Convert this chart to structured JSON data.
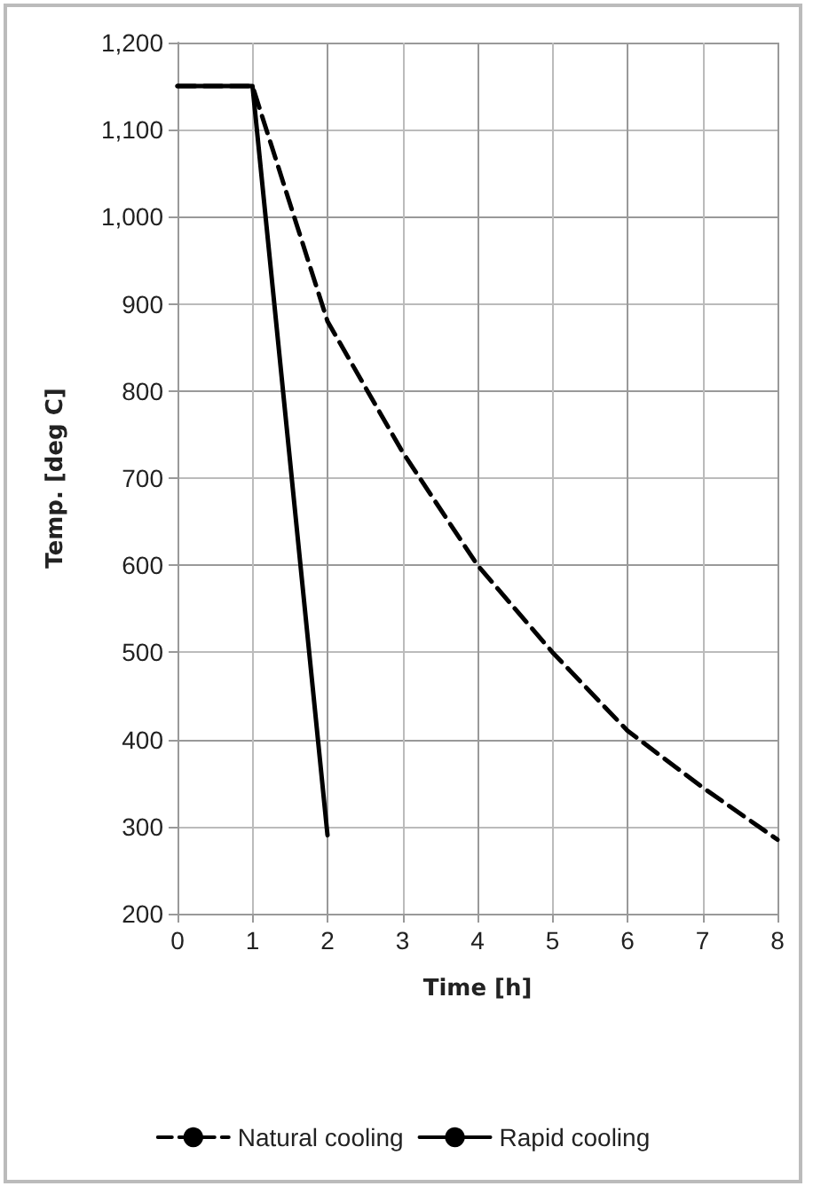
{
  "chart_data": {
    "type": "line",
    "xlabel": "Time [h]",
    "ylabel": "Temp. [deg C]",
    "series": [
      {
        "name": "Natural cooling",
        "color": "#000000",
        "line_style": "dashed",
        "x": [
          0,
          1,
          2,
          3,
          4,
          5,
          6,
          7,
          8
        ],
        "values": [
          1150,
          1150,
          880,
          730,
          600,
          500,
          410,
          345,
          285
        ]
      },
      {
        "name": "Rapid cooling",
        "color": "#000000",
        "line_style": "solid",
        "x": [
          0,
          1,
          2
        ],
        "values": [
          1150,
          1150,
          290
        ]
      }
    ],
    "xlim": [
      0,
      8
    ],
    "xticks": [
      0,
      1,
      2,
      3,
      4,
      5,
      6,
      7,
      8
    ],
    "ylim": [
      200,
      1200
    ],
    "yticks": [
      200,
      300,
      400,
      500,
      600,
      700,
      800,
      900,
      {
        "value": 1000,
        "label": "1,000"
      },
      {
        "value": 1100,
        "label": "1,100"
      },
      {
        "value": 1200,
        "label": "1,200"
      }
    ],
    "grid": true,
    "legend": "bottom",
    "marker": "none"
  }
}
